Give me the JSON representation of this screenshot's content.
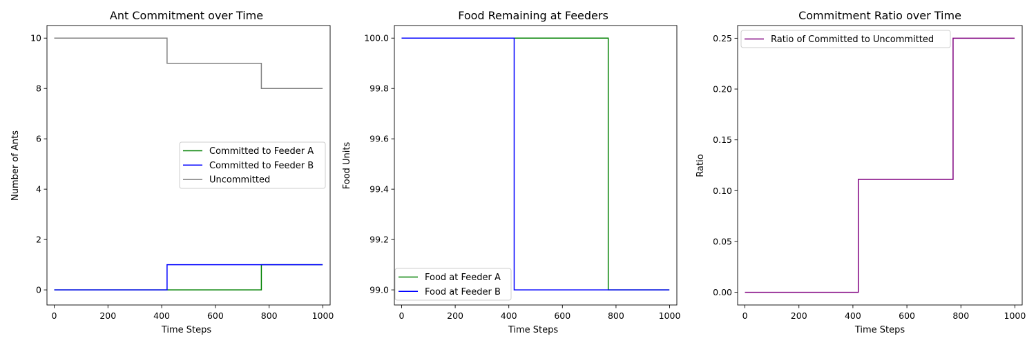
{
  "chart_data": [
    {
      "type": "line",
      "title": "Ant Commitment over Time",
      "xlabel": "Time Steps",
      "ylabel": "Number of Ants",
      "xlim": [
        -27,
        1027
      ],
      "ylim": [
        -0.6,
        10.5
      ],
      "xticks": [
        0,
        200,
        400,
        600,
        800,
        1000
      ],
      "yticks": [
        0,
        2,
        4,
        6,
        8,
        10
      ],
      "ytick_decimals": 0,
      "legend_position": "center-right",
      "series": [
        {
          "name": "Committed to Feeder A",
          "color": "#008000",
          "points": [
            [
              0,
              0
            ],
            [
              771,
              0
            ],
            [
              771,
              1
            ],
            [
              999,
              1
            ]
          ]
        },
        {
          "name": "Committed to Feeder B",
          "color": "#0000ff",
          "points": [
            [
              0,
              0
            ],
            [
              420,
              0
            ],
            [
              420,
              1
            ],
            [
              999,
              1
            ]
          ]
        },
        {
          "name": "Uncommitted",
          "color": "#808080",
          "points": [
            [
              0,
              10
            ],
            [
              420,
              10
            ],
            [
              420,
              9
            ],
            [
              771,
              9
            ],
            [
              771,
              8
            ],
            [
              999,
              8
            ]
          ]
        }
      ]
    },
    {
      "type": "line",
      "title": "Food Remaining at Feeders",
      "xlabel": "Time Steps",
      "ylabel": "Food Units",
      "xlim": [
        -27,
        1027
      ],
      "ylim": [
        98.94,
        100.05
      ],
      "xticks": [
        0,
        200,
        400,
        600,
        800,
        1000
      ],
      "yticks": [
        99.0,
        99.2,
        99.4,
        99.6,
        99.8,
        100.0
      ],
      "ytick_decimals": 1,
      "legend_position": "lower-left",
      "series": [
        {
          "name": "Food at Feeder A",
          "color": "#008000",
          "points": [
            [
              0,
              100
            ],
            [
              771,
              100
            ],
            [
              771,
              99
            ],
            [
              999,
              99
            ]
          ]
        },
        {
          "name": "Food at Feeder B",
          "color": "#0000ff",
          "points": [
            [
              0,
              100
            ],
            [
              420,
              100
            ],
            [
              420,
              99
            ],
            [
              999,
              99
            ]
          ]
        }
      ]
    },
    {
      "type": "line",
      "title": "Commitment Ratio over Time",
      "xlabel": "Time Steps",
      "ylabel": "Ratio",
      "xlim": [
        -27,
        1027
      ],
      "ylim": [
        -0.0125,
        0.2625
      ],
      "xticks": [
        0,
        200,
        400,
        600,
        800,
        1000
      ],
      "yticks": [
        0.0,
        0.05,
        0.1,
        0.15,
        0.2,
        0.25
      ],
      "ytick_decimals": 2,
      "legend_position": "upper-left",
      "series": [
        {
          "name": "Ratio of Committed to Uncommitted",
          "color": "#800080",
          "points": [
            [
              0,
              0
            ],
            [
              420,
              0
            ],
            [
              420,
              0.1111
            ],
            [
              771,
              0.1111
            ],
            [
              771,
              0.25
            ],
            [
              999,
              0.25
            ]
          ]
        }
      ]
    }
  ]
}
